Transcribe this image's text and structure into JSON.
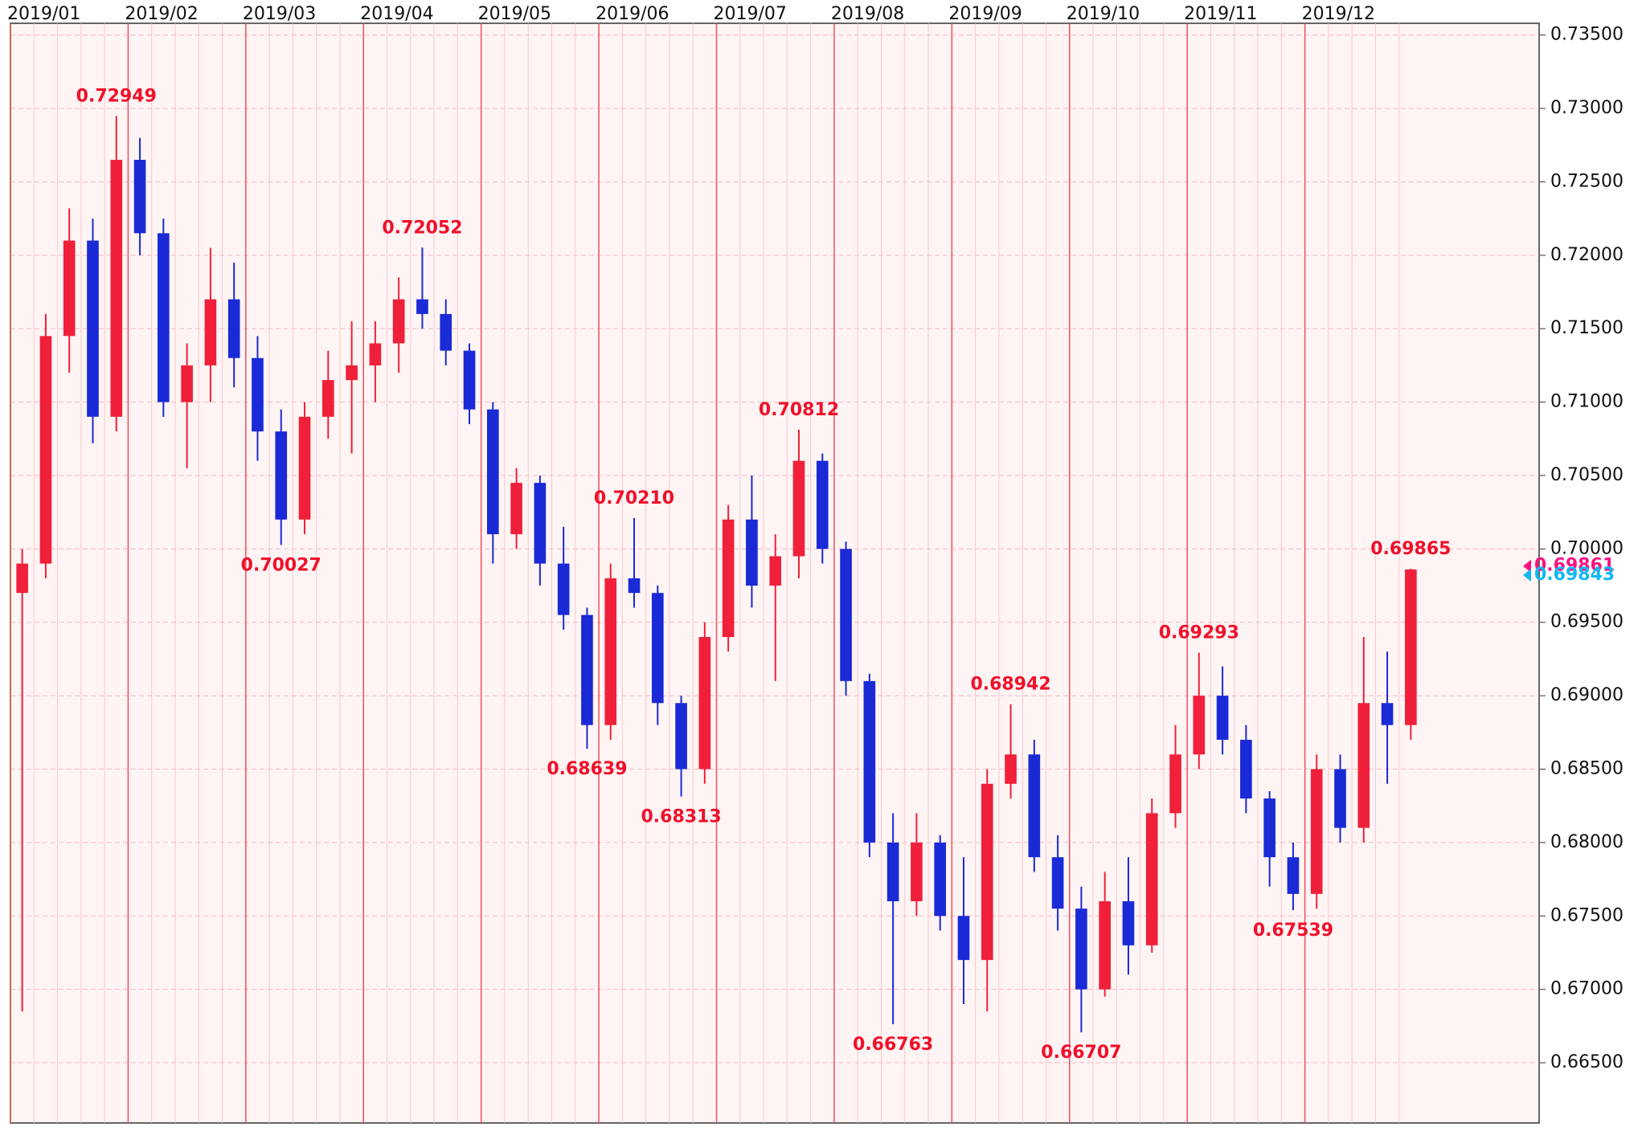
{
  "chart_data": {
    "type": "candlestick",
    "up_color": "#f0203a",
    "down_color": "#1a2ad6",
    "open": [
      0.697,
      0.699,
      0.7145,
      0.721,
      0.709,
      0.7265,
      0.7215,
      0.71,
      0.7125,
      0.717,
      0.713,
      0.708,
      0.702,
      0.709,
      0.7115,
      0.7125,
      0.714,
      0.717,
      0.716,
      0.7135,
      0.7095,
      0.701,
      0.7045,
      0.699,
      0.6955,
      0.688,
      0.698,
      0.697,
      0.6895,
      0.685,
      0.694,
      0.702,
      0.6975,
      0.6995,
      0.706,
      0.7,
      0.691,
      0.68,
      0.676,
      0.68,
      0.675,
      0.672,
      0.684,
      0.686,
      0.679,
      0.6755,
      0.67,
      0.676,
      0.673,
      0.682,
      0.686,
      0.69,
      0.687,
      0.683,
      0.679,
      0.6765,
      0.685,
      0.681,
      0.6895,
      0.688
    ],
    "high": [
      0.7,
      0.716,
      0.7232,
      0.7225,
      0.72949,
      0.728,
      0.7225,
      0.714,
      0.7205,
      0.7195,
      0.7145,
      0.7095,
      0.71,
      0.7135,
      0.7155,
      0.7155,
      0.7185,
      0.72052,
      0.717,
      0.714,
      0.71,
      0.7055,
      0.705,
      0.7015,
      0.696,
      0.699,
      0.7021,
      0.6975,
      0.69,
      0.695,
      0.703,
      0.705,
      0.701,
      0.70812,
      0.7065,
      0.7005,
      0.6915,
      0.682,
      0.682,
      0.6805,
      0.679,
      0.685,
      0.68942,
      0.687,
      0.6805,
      0.677,
      0.678,
      0.679,
      0.683,
      0.688,
      0.69293,
      0.692,
      0.688,
      0.6835,
      0.68,
      0.686,
      0.686,
      0.694,
      0.693,
      0.69865
    ],
    "low": [
      0.6685,
      0.698,
      0.712,
      0.7072,
      0.708,
      0.72,
      0.709,
      0.7055,
      0.71,
      0.711,
      0.706,
      0.70027,
      0.701,
      0.7075,
      0.7065,
      0.71,
      0.712,
      0.715,
      0.7125,
      0.7085,
      0.699,
      0.7,
      0.6975,
      0.6945,
      0.68639,
      0.687,
      0.696,
      0.688,
      0.68313,
      0.684,
      0.693,
      0.696,
      0.691,
      0.698,
      0.699,
      0.69,
      0.679,
      0.66763,
      0.675,
      0.674,
      0.669,
      0.6685,
      0.683,
      0.678,
      0.674,
      0.66707,
      0.6695,
      0.671,
      0.6725,
      0.681,
      0.685,
      0.686,
      0.682,
      0.677,
      0.67539,
      0.6755,
      0.68,
      0.68,
      0.684,
      0.687
    ],
    "close": [
      0.699,
      0.7145,
      0.721,
      0.709,
      0.7265,
      0.7215,
      0.71,
      0.7125,
      0.717,
      0.713,
      0.708,
      0.702,
      0.709,
      0.7115,
      0.7125,
      0.714,
      0.717,
      0.716,
      0.7135,
      0.7095,
      0.701,
      0.7045,
      0.699,
      0.6955,
      0.688,
      0.698,
      0.697,
      0.6895,
      0.685,
      0.694,
      0.702,
      0.6975,
      0.6995,
      0.706,
      0.7,
      0.691,
      0.68,
      0.676,
      0.68,
      0.675,
      0.672,
      0.684,
      0.686,
      0.679,
      0.6755,
      0.67,
      0.676,
      0.673,
      0.682,
      0.686,
      0.69,
      0.687,
      0.683,
      0.679,
      0.6765,
      0.685,
      0.681,
      0.6895,
      0.688,
      0.6986
    ],
    "xticks": [
      {
        "value": 0,
        "label": "2019/01"
      },
      {
        "value": 5,
        "label": "2019/02"
      },
      {
        "value": 10,
        "label": "2019/03"
      },
      {
        "value": 15,
        "label": "2019/04"
      },
      {
        "value": 20,
        "label": "2019/05"
      },
      {
        "value": 25,
        "label": "2019/06"
      },
      {
        "value": 30,
        "label": "2019/07"
      },
      {
        "value": 35,
        "label": "2019/08"
      },
      {
        "value": 40,
        "label": "2019/09"
      },
      {
        "value": 45,
        "label": "2019/10"
      },
      {
        "value": 50,
        "label": "2019/11"
      },
      {
        "value": 55,
        "label": "2019/12"
      }
    ],
    "ylim": [
      0.6609,
      0.7358
    ],
    "yticks": [
      {
        "value": 0.665,
        "label": "0.66500"
      },
      {
        "value": 0.67,
        "label": "0.67000"
      },
      {
        "value": 0.675,
        "label": "0.67500"
      },
      {
        "value": 0.68,
        "label": "0.68000"
      },
      {
        "value": 0.685,
        "label": "0.68500"
      },
      {
        "value": 0.69,
        "label": "0.69000"
      },
      {
        "value": 0.695,
        "label": "0.69500"
      },
      {
        "value": 0.7,
        "label": "0.70000"
      },
      {
        "value": 0.705,
        "label": "0.70500"
      },
      {
        "value": 0.71,
        "label": "0.71000"
      },
      {
        "value": 0.715,
        "label": "0.71500"
      },
      {
        "value": 0.72,
        "label": "0.72000"
      },
      {
        "value": 0.725,
        "label": "0.72500"
      },
      {
        "value": 0.73,
        "label": "0.73000"
      },
      {
        "value": 0.735,
        "label": "0.73500"
      }
    ],
    "grid": true,
    "annotations": [
      {
        "text": "0.72949",
        "x": 4,
        "y": 0.72949
      },
      {
        "text": "0.70027",
        "x": 11,
        "y": 0.70027
      },
      {
        "text": "0.72052",
        "x": 17,
        "y": 0.72052
      },
      {
        "text": "0.68639",
        "x": 24,
        "y": 0.68639
      },
      {
        "text": "0.70210",
        "x": 26,
        "y": 0.7021
      },
      {
        "text": "0.68313",
        "x": 28,
        "y": 0.68313
      },
      {
        "text": "0.70812",
        "x": 33,
        "y": 0.70812
      },
      {
        "text": "0.66763",
        "x": 37,
        "y": 0.66763
      },
      {
        "text": "0.68942",
        "x": 42,
        "y": 0.68942
      },
      {
        "text": "0.66707",
        "x": 45,
        "y": 0.66707
      },
      {
        "text": "0.69293",
        "x": 50,
        "y": 0.69293
      },
      {
        "text": "0.67539",
        "x": 54,
        "y": 0.67539
      },
      {
        "text": "0.69865",
        "x": 59,
        "y": 0.69865
      }
    ],
    "price_markers": [
      {
        "label": "0.69861",
        "value": 0.69861,
        "color": "#ff1080"
      },
      {
        "label": "0.69843",
        "value": 0.69843,
        "color": "#10b8f0"
      }
    ]
  }
}
